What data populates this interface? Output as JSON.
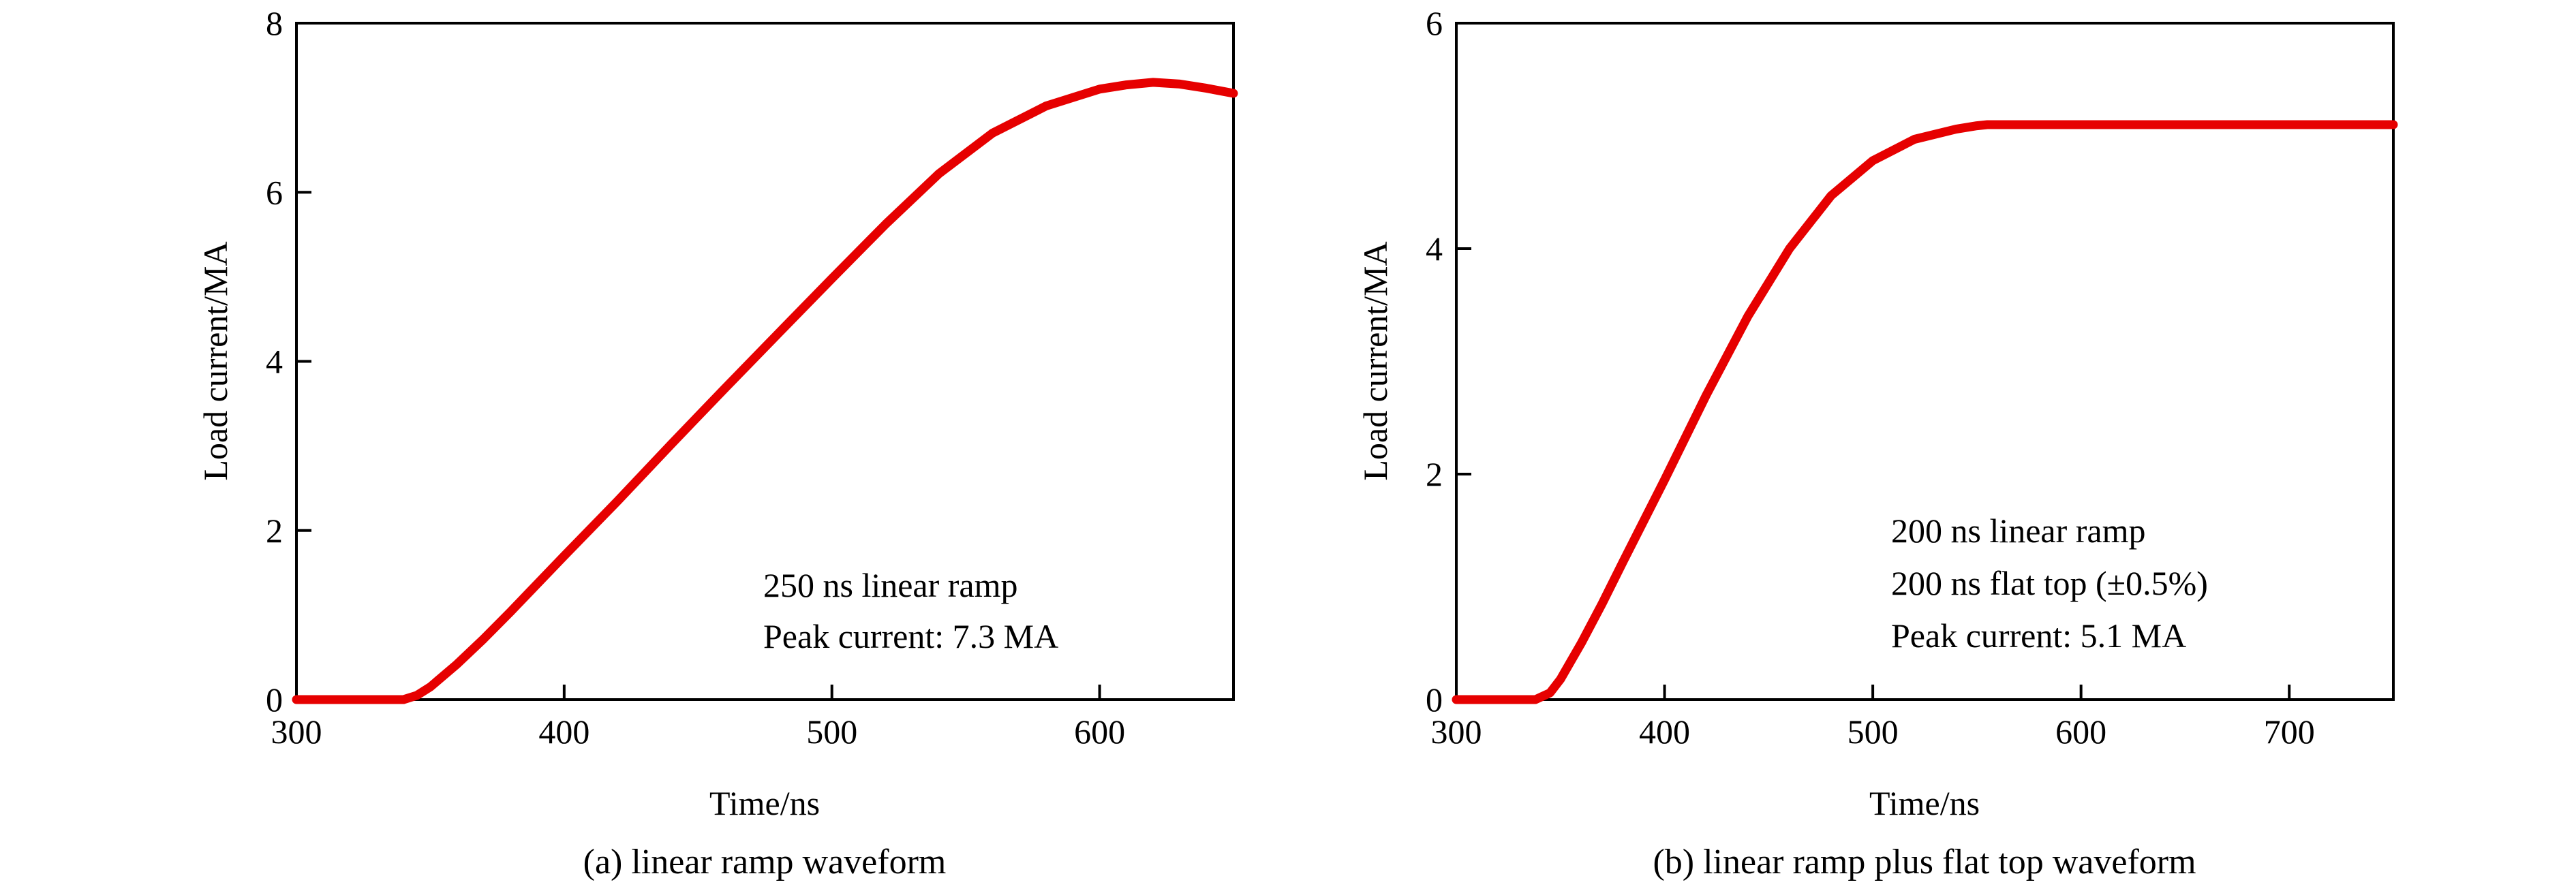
{
  "chart_data": [
    {
      "type": "line",
      "caption": "(a)  linear ramp waveform",
      "xlabel": "Time/ns",
      "ylabel": "Load current/MA",
      "xlim": [
        300,
        650
      ],
      "ylim": [
        0,
        8
      ],
      "xticks": [
        300,
        400,
        500,
        600
      ],
      "yticks": [
        0,
        2,
        4,
        6,
        8
      ],
      "annotations": [
        "250 ns linear ramp",
        "Peak current: 7.3 MA"
      ],
      "series": [
        {
          "color": "#e60000",
          "x": [
            300,
            340,
            345,
            350,
            360,
            370,
            380,
            400,
            420,
            440,
            460,
            480,
            500,
            520,
            540,
            560,
            580,
            600,
            610,
            620,
            630,
            640,
            650
          ],
          "y": [
            0,
            0,
            0.05,
            0.15,
            0.42,
            0.72,
            1.04,
            1.7,
            2.35,
            3.02,
            3.68,
            4.33,
            4.98,
            5.62,
            6.22,
            6.7,
            7.02,
            7.22,
            7.27,
            7.3,
            7.28,
            7.23,
            7.17
          ]
        }
      ]
    },
    {
      "type": "line",
      "caption": "(b)  linear ramp plus flat top waveform",
      "xlabel": "Time/ns",
      "ylabel": "Load current/MA",
      "xlim": [
        300,
        750
      ],
      "ylim": [
        0,
        6
      ],
      "xticks": [
        300,
        400,
        500,
        600,
        700
      ],
      "yticks": [
        0,
        2,
        4,
        6
      ],
      "annotations": [
        "200 ns linear ramp",
        "200 ns flat top (±0.5%)",
        "Peak current: 5.1 MA"
      ],
      "series": [
        {
          "color": "#e60000",
          "x": [
            300,
            338,
            345,
            350,
            360,
            370,
            380,
            400,
            420,
            440,
            460,
            480,
            500,
            520,
            540,
            550,
            555,
            560,
            600,
            650,
            700,
            750
          ],
          "y": [
            0,
            0,
            0.06,
            0.18,
            0.5,
            0.85,
            1.22,
            1.95,
            2.7,
            3.4,
            4.0,
            4.47,
            4.78,
            4.97,
            5.06,
            5.09,
            5.1,
            5.1,
            5.1,
            5.1,
            5.1,
            5.1
          ]
        }
      ]
    }
  ]
}
